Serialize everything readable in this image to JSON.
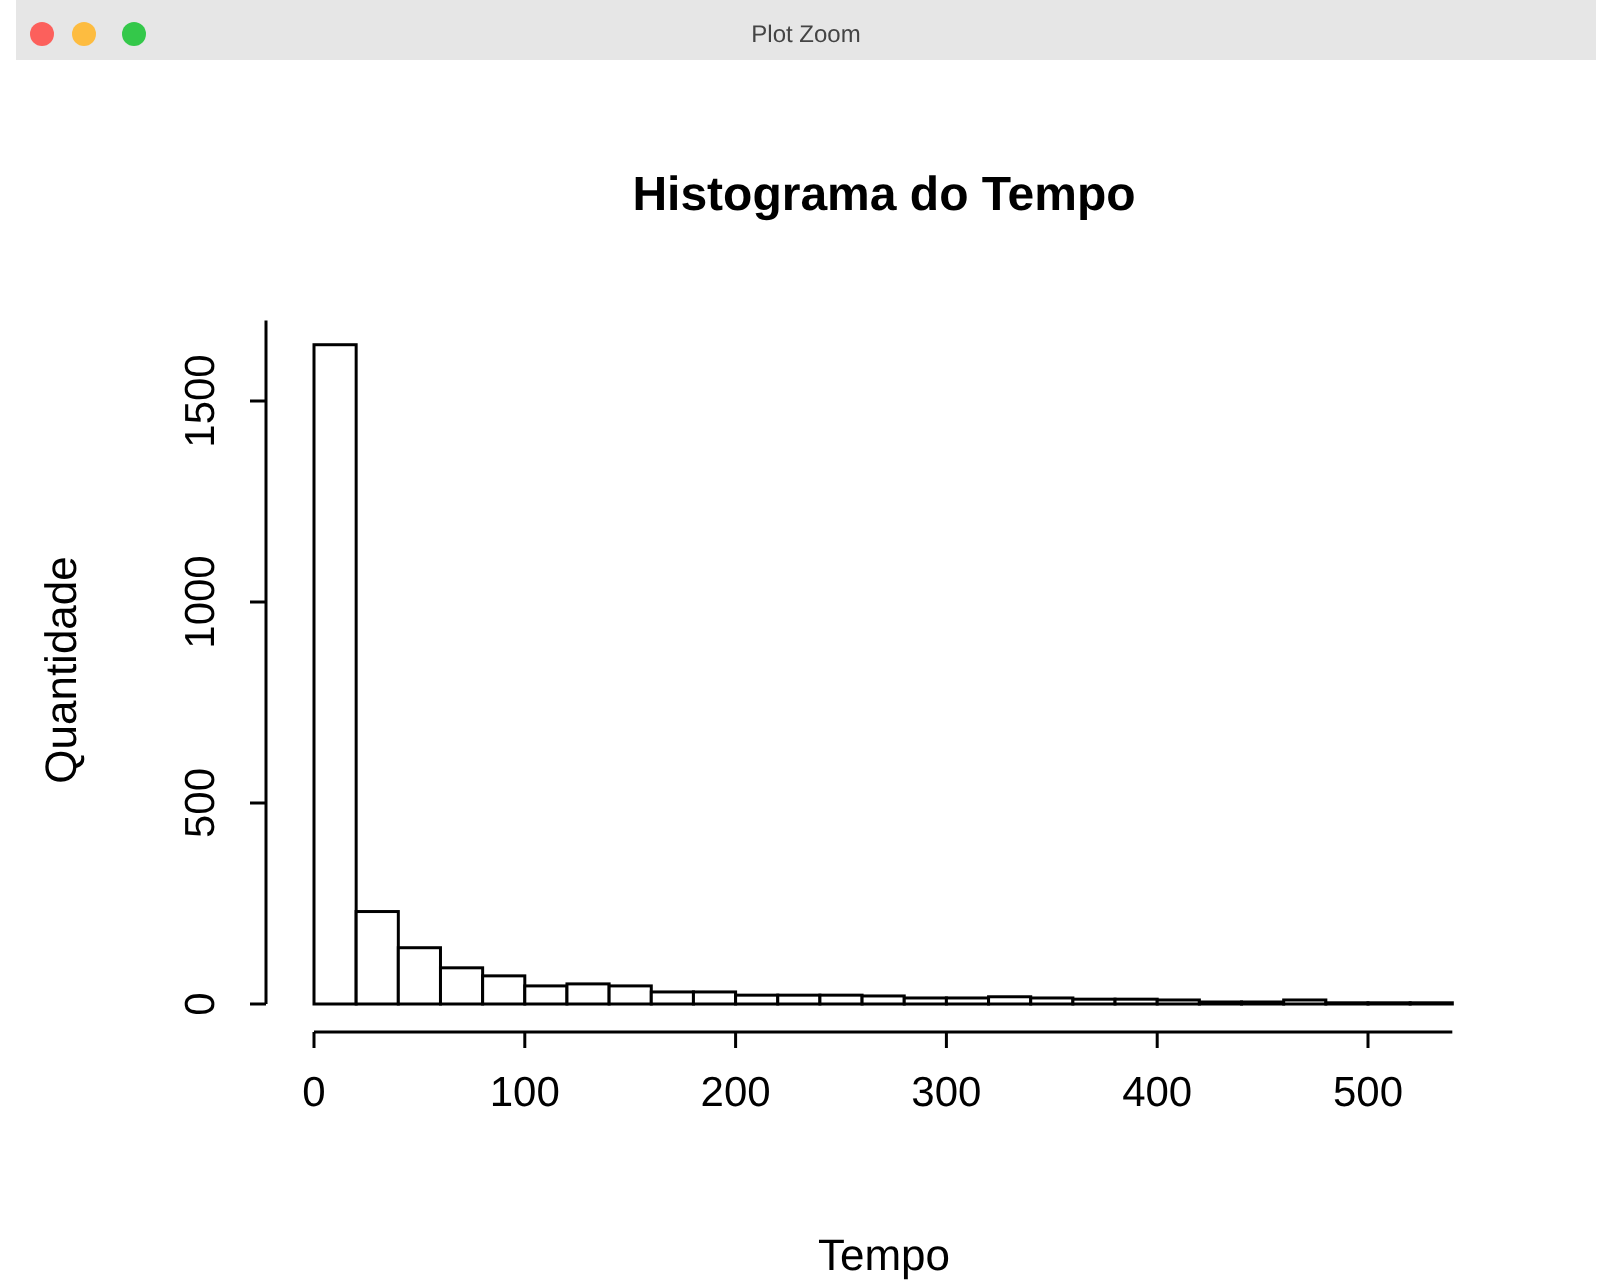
{
  "chart_data": {
    "type": "histogram",
    "title": "Histograma do Tempo",
    "xlabel": "Tempo",
    "ylabel": "Quantidade",
    "bins": [
      0,
      20,
      40,
      60,
      80,
      100,
      120,
      140,
      160,
      180,
      200,
      220,
      240,
      260,
      280,
      300,
      320,
      340,
      360,
      380,
      400,
      420,
      440,
      460,
      480,
      500,
      520,
      540
    ],
    "values": [
      1640,
      230,
      140,
      90,
      70,
      45,
      50,
      45,
      30,
      30,
      22,
      22,
      22,
      20,
      15,
      15,
      18,
      15,
      12,
      12,
      10,
      5,
      5,
      10,
      3,
      3,
      3
    ],
    "color": "#ffffff",
    "xlim": [
      0,
      540
    ],
    "xticks": [
      0,
      100,
      200,
      300,
      400,
      500
    ],
    "ylim": [
      0,
      1700
    ],
    "yticks": [
      0,
      500,
      1000,
      1500
    ],
    "grid": false,
    "annotations": [
      "Plot Zoom"
    ]
  }
}
